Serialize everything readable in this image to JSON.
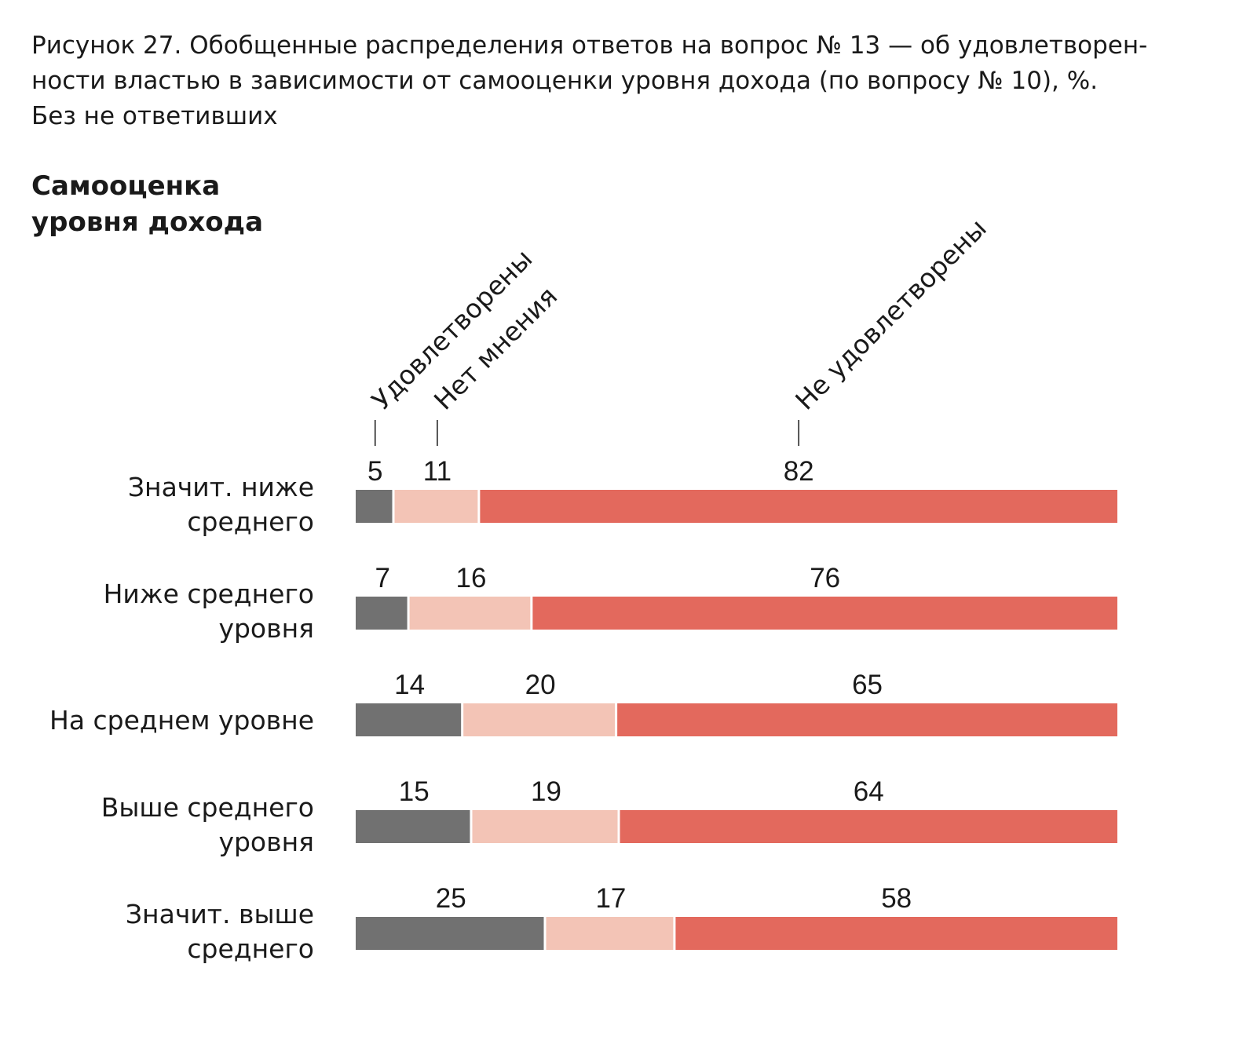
{
  "caption": {
    "line1": "Рисунок 27. Обобщенные распределения ответов на вопрос № 13 — об удовлетворен-",
    "line2": "ности властью в зависимости от самооценки уровня дохода (по вопросу № 10), %.",
    "line3": "Без не ответивших"
  },
  "row_heading": {
    "line1": "Самооценка",
    "line2": "уровня дохода"
  },
  "chart_data": {
    "type": "bar",
    "orientation": "horizontal",
    "stacked": true,
    "title": "Рисунок 27. Обобщенные распределения ответов на вопрос № 13 — об удовлетворенности властью в зависимости от самооценки уровня дохода (по вопросу № 10), %. Без не ответивших",
    "ylabel": "Самооценка уровня дохода",
    "categories": [
      [
        "Значит. ниже",
        "среднего"
      ],
      [
        "Ниже среднего",
        "уровня"
      ],
      [
        "На среднем уровне"
      ],
      [
        "Выше среднего",
        "уровня"
      ],
      [
        "Значит. выше",
        "среднего"
      ]
    ],
    "series": [
      {
        "name": "Удовлетворены",
        "color": "#717171",
        "values": [
          5,
          7,
          14,
          15,
          25
        ]
      },
      {
        "name": "Нет мнения",
        "color": "#f3c4b6",
        "values": [
          11,
          16,
          20,
          19,
          17
        ]
      },
      {
        "name": "Не удовлетворены",
        "color": "#e3695d",
        "values": [
          82,
          76,
          65,
          64,
          58
        ]
      }
    ],
    "legend_placement": "top, rotated labels above first bar",
    "grid": false
  }
}
